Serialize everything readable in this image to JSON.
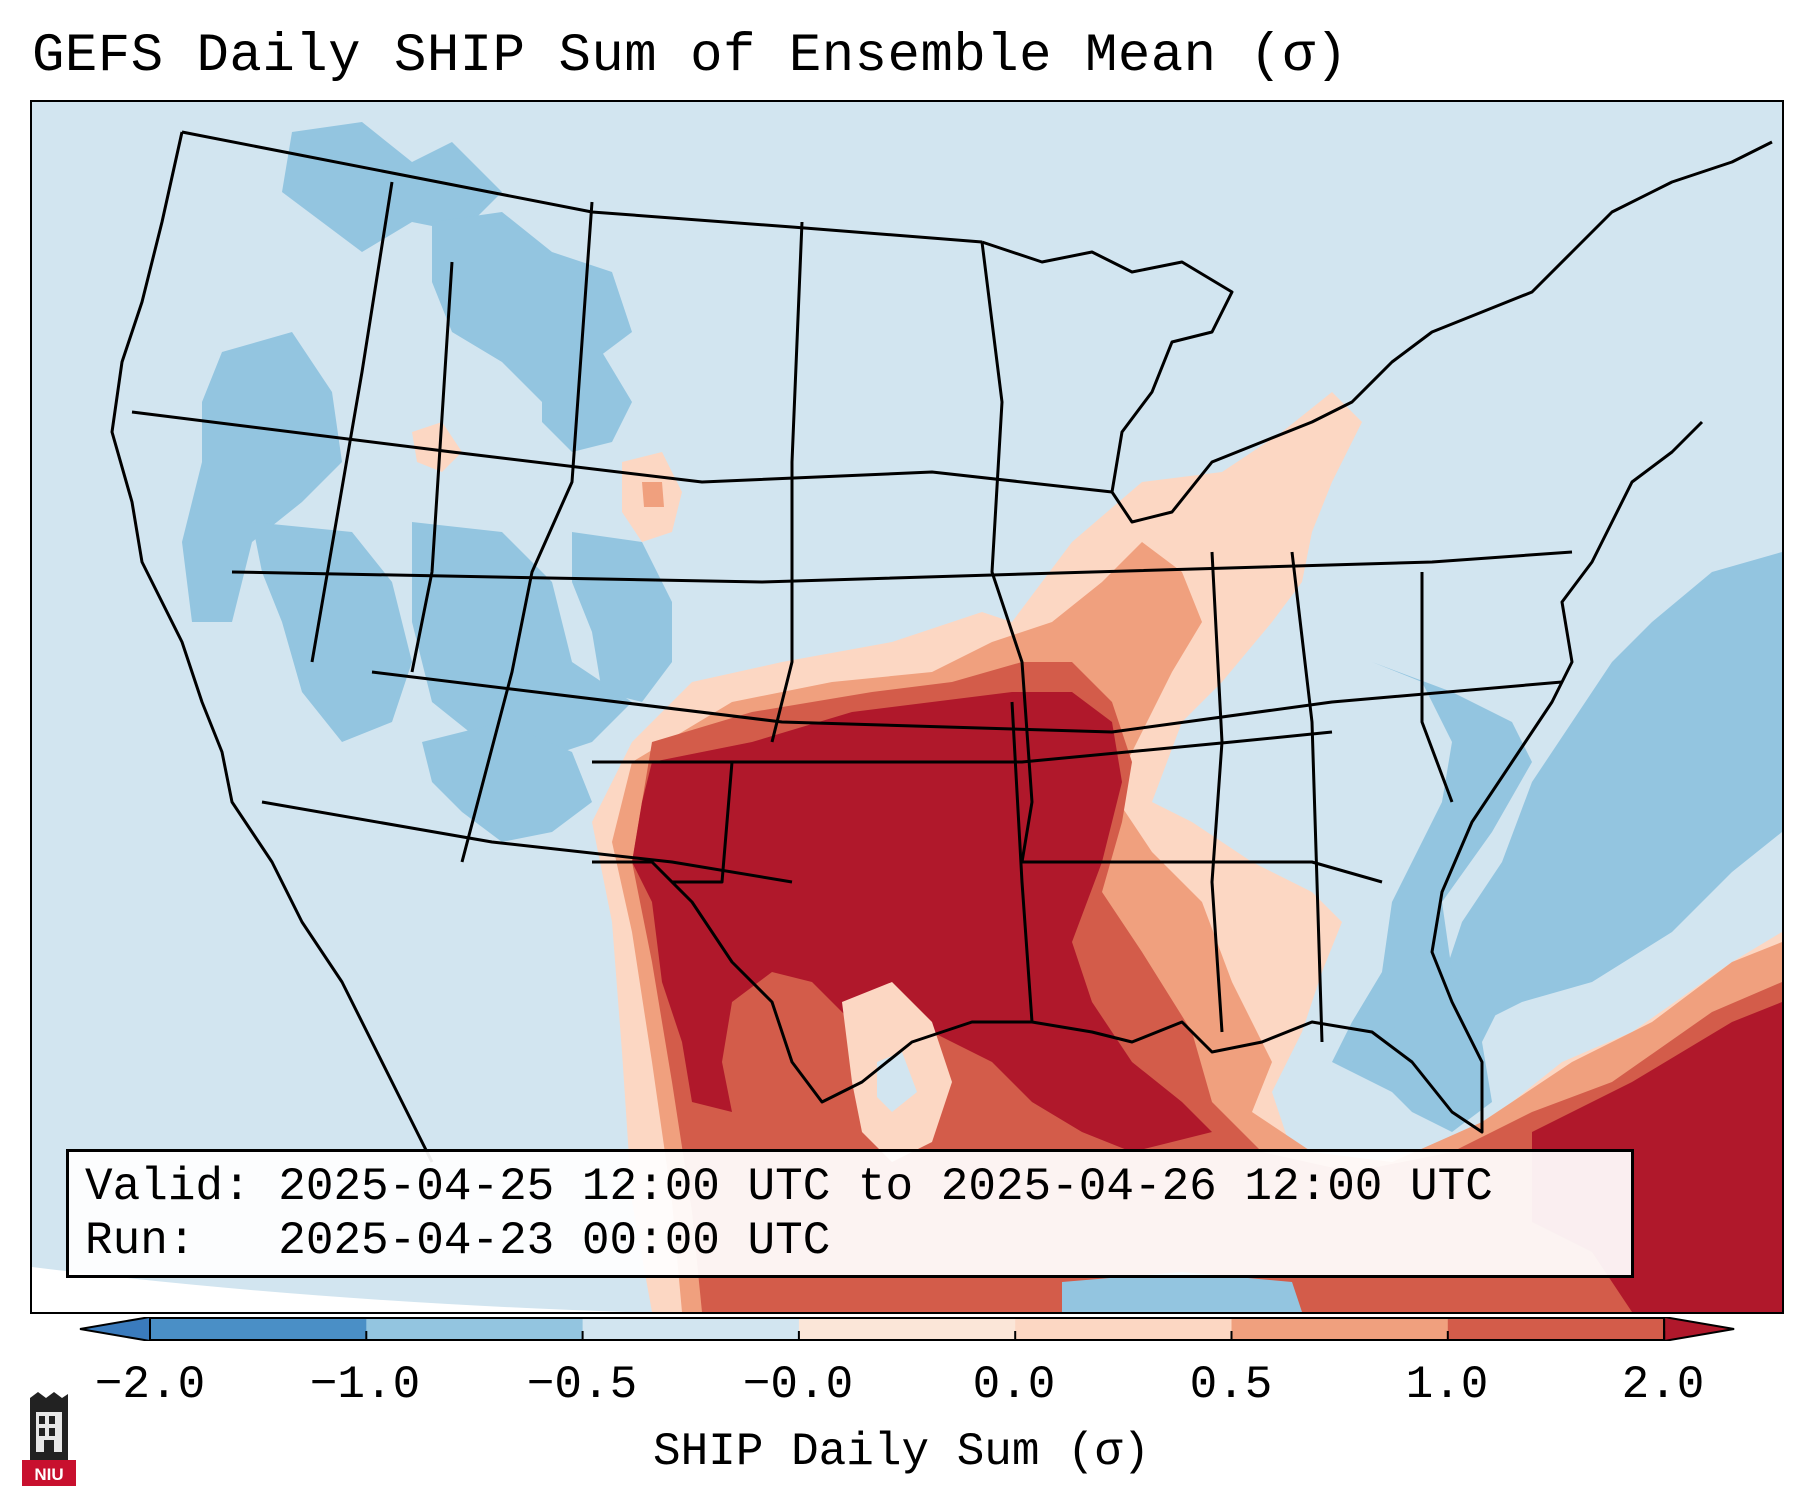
{
  "title": "GEFS Daily SHIP Sum of Ensemble Mean (σ)",
  "info": {
    "valid": "Valid: 2025-04-25 12:00 UTC to 2025-04-26 12:00 UTC",
    "run": "Run:   2025-04-23 00:00 UTC"
  },
  "colorbar": {
    "label": "SHIP Daily Sum (σ)",
    "ticks": [
      "−2.0",
      "−1.0",
      "−0.5",
      "−0.0",
      "0.0",
      "0.5",
      "1.0",
      "2.0"
    ],
    "colors": [
      "#4a8fc6",
      "#93c5e0",
      "#d2e5f0",
      "#f7f7f7",
      "#fcd7c3",
      "#f0a07e",
      "#d35c4a",
      "#b0182b"
    ],
    "extend": "both"
  },
  "logo": {
    "name": "NIU",
    "text": "NIU"
  },
  "palette": {
    "deep_blue": "#4a8fc6",
    "mid_blue": "#93c5e0",
    "light_blue": "#d2e5f0",
    "peach": "#fcd7c3",
    "salmon": "#f0a07e",
    "red": "#d35c4a",
    "dark_red": "#b0182b"
  }
}
